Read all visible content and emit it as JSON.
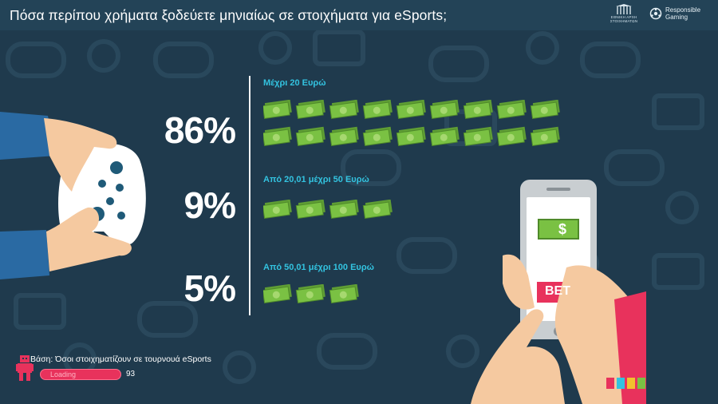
{
  "page": {
    "title": "Πόσα περίπου χρήματα ξοδεύετε μηνιαίως σε στοιχήματα για eSports;",
    "base_note": "Βάση: Όσοι στοιχηματίζουν σε τουρνουά eSports",
    "loading_label": "Loading",
    "loading_count": "93",
    "phone_screen_symbol": "$",
    "phone_button": "BET",
    "logo_right": "Responsible Gaming",
    "logo_left_caption": "ΕΘΝΙΚΗ ΑΡΧΗ ΣΤΟΙΧΗΜΑΤΩΝ"
  },
  "colors": {
    "background": "#1f3a4d",
    "accent_cyan": "#33c3e0",
    "money_green": "#7ac143",
    "loading_pink": "#e8325c"
  },
  "icons": [
    "game-controller-icon",
    "money-bill-icon",
    "smartphone-icon",
    "robot-icon",
    "responsible-gaming-icon"
  ],
  "chart_data": {
    "type": "bar",
    "categories": [
      "Μέχρι 20 Ευρώ",
      "Από 20,01 μέχρι 50 Ευρώ",
      "Από 50,01 μέχρι 100 Ευρώ"
    ],
    "values": [
      86,
      9,
      5
    ],
    "value_labels": [
      "86%",
      "9%",
      "5%"
    ],
    "bill_counts": [
      18,
      4,
      3
    ],
    "unit": "%",
    "orientation": "horizontal-pictogram"
  }
}
